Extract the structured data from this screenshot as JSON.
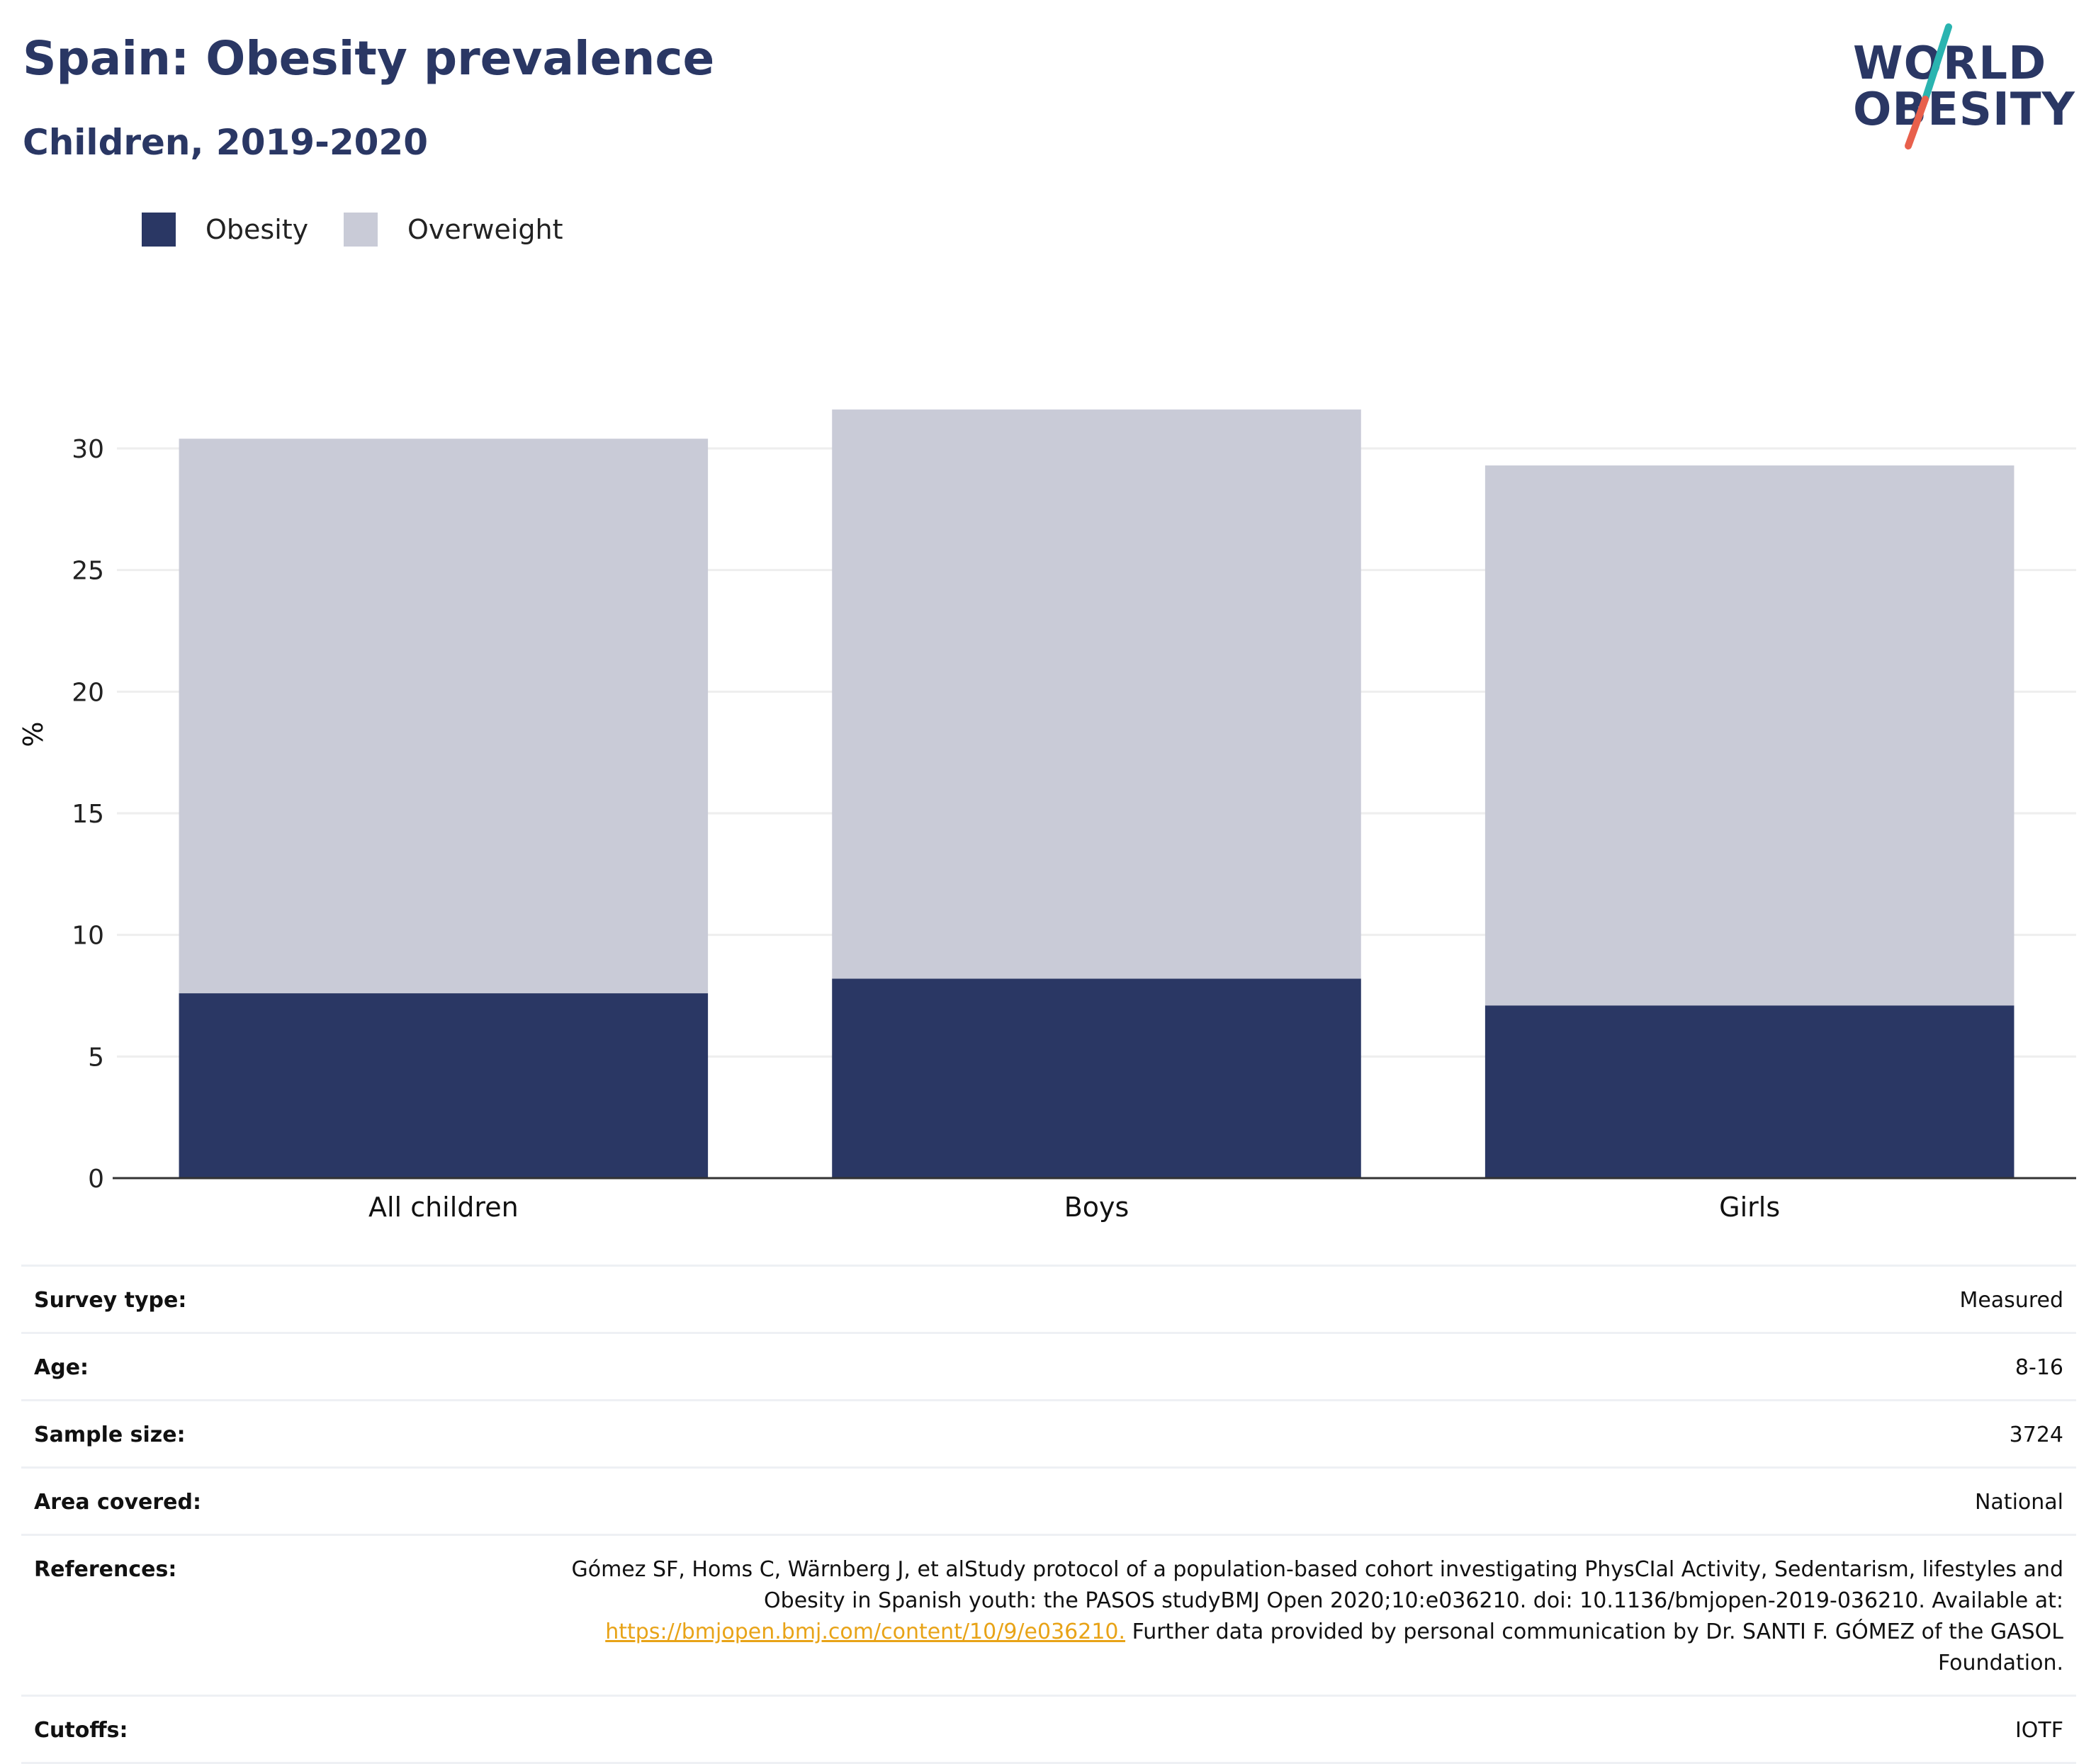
{
  "header": {
    "title": "Spain: Obesity prevalence",
    "subtitle": "Children, 2019-2020"
  },
  "logo": {
    "line1": "WORLD",
    "line2": "OBESITY",
    "slash_colors": [
      "#2ab4b0",
      "#e8604c"
    ]
  },
  "legend": {
    "items": [
      {
        "label": "Obesity",
        "color": "#2a3764"
      },
      {
        "label": "Overweight",
        "color": "#c9cbd7"
      }
    ]
  },
  "chart_data": {
    "type": "bar",
    "stacked": true,
    "categories": [
      "All children",
      "Boys",
      "Girls"
    ],
    "series": [
      {
        "name": "Obesity",
        "color": "#2a3764",
        "values": [
          7.6,
          8.2,
          7.1
        ]
      },
      {
        "name": "Overweight",
        "color": "#c9cbd7",
        "values": [
          22.8,
          23.4,
          22.2
        ]
      }
    ],
    "title": "Spain: Obesity prevalence",
    "subtitle": "Children, 2019-2020",
    "xlabel": "",
    "ylabel": "%",
    "ylim": [
      0,
      33
    ],
    "yticks": [
      0,
      5,
      10,
      15,
      20,
      25,
      30
    ],
    "grid": true,
    "legend_position": "top-left"
  },
  "info_table": {
    "rows": [
      {
        "label": "Survey type:",
        "value": "Measured"
      },
      {
        "label": "Age:",
        "value": "8-16"
      },
      {
        "label": "Sample size:",
        "value": "3724"
      },
      {
        "label": "Area covered:",
        "value": "National"
      },
      {
        "label": "References:",
        "value_before": "Gómez SF, Homs C, Wärnberg J, et alStudy protocol of a population-based cohort investigating PhysCIal Activity, Sedentarism, lifestyles and Obesity in Spanish youth: the PASOS studyBMJ Open 2020;10:e036210. doi: 10.1136/bmjopen-2019-036210. Available at: ",
        "link": "https://bmjopen.bmj.com/content/10/9/e036210.",
        "value_after": " Further data provided by personal communication by Dr. SANTI F. GÓMEZ of the GASOL Foundation."
      },
      {
        "label": "Cutoffs:",
        "value": "IOTF"
      }
    ]
  }
}
